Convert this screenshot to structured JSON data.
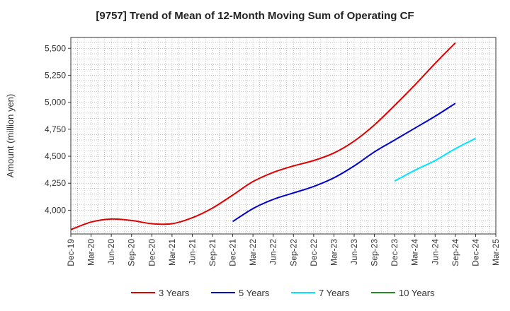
{
  "chart_data": {
    "type": "line",
    "title": "[9757]  Trend of Mean of 12-Month Moving Sum of Operating CF",
    "xlabel": "",
    "ylabel": "Amount (million yen)",
    "ylim": [
      3780,
      5600
    ],
    "yticks": [
      4000,
      4250,
      4500,
      4750,
      5000,
      5250,
      5500
    ],
    "ytick_labels": [
      "4,000",
      "4,250",
      "4,500",
      "4,750",
      "5,000",
      "5,250",
      "5,500"
    ],
    "x_start": "Dec-19",
    "x_months_total": 63,
    "xtick_labels": [
      "Dec-19",
      "Mar-20",
      "Jun-20",
      "Sep-20",
      "Dec-20",
      "Mar-21",
      "Jun-21",
      "Sep-21",
      "Dec-21",
      "Mar-22",
      "Jun-22",
      "Sep-22",
      "Dec-22",
      "Mar-23",
      "Jun-23",
      "Sep-23",
      "Dec-23",
      "Mar-24",
      "Jun-24",
      "Sep-24",
      "Dec-24",
      "Mar-25"
    ],
    "grid": true,
    "legend_position": "bottom",
    "series": [
      {
        "name": "3 Years",
        "color": "#e00000",
        "points": [
          [
            0,
            3820
          ],
          [
            3,
            3890
          ],
          [
            6,
            3918
          ],
          [
            9,
            3905
          ],
          [
            12,
            3875
          ],
          [
            15,
            3875
          ],
          [
            18,
            3930
          ],
          [
            21,
            4020
          ],
          [
            24,
            4140
          ],
          [
            27,
            4265
          ],
          [
            30,
            4350
          ],
          [
            33,
            4410
          ],
          [
            36,
            4460
          ],
          [
            39,
            4530
          ],
          [
            42,
            4640
          ],
          [
            45,
            4790
          ],
          [
            48,
            4970
          ],
          [
            51,
            5160
          ],
          [
            54,
            5360
          ],
          [
            57,
            5550
          ]
        ]
      },
      {
        "name": "5 Years",
        "color": "#0000cc",
        "points": [
          [
            24,
            3895
          ],
          [
            27,
            4015
          ],
          [
            30,
            4100
          ],
          [
            33,
            4160
          ],
          [
            36,
            4220
          ],
          [
            39,
            4300
          ],
          [
            42,
            4410
          ],
          [
            45,
            4540
          ],
          [
            48,
            4650
          ],
          [
            51,
            4760
          ],
          [
            54,
            4870
          ],
          [
            57,
            4990
          ]
        ]
      },
      {
        "name": "7 Years",
        "color": "#00e5ff",
        "points": [
          [
            48,
            4270
          ],
          [
            51,
            4370
          ],
          [
            54,
            4460
          ],
          [
            57,
            4570
          ],
          [
            60,
            4665
          ]
        ]
      },
      {
        "name": "10 Years",
        "color": "#228b22",
        "points": []
      }
    ]
  }
}
